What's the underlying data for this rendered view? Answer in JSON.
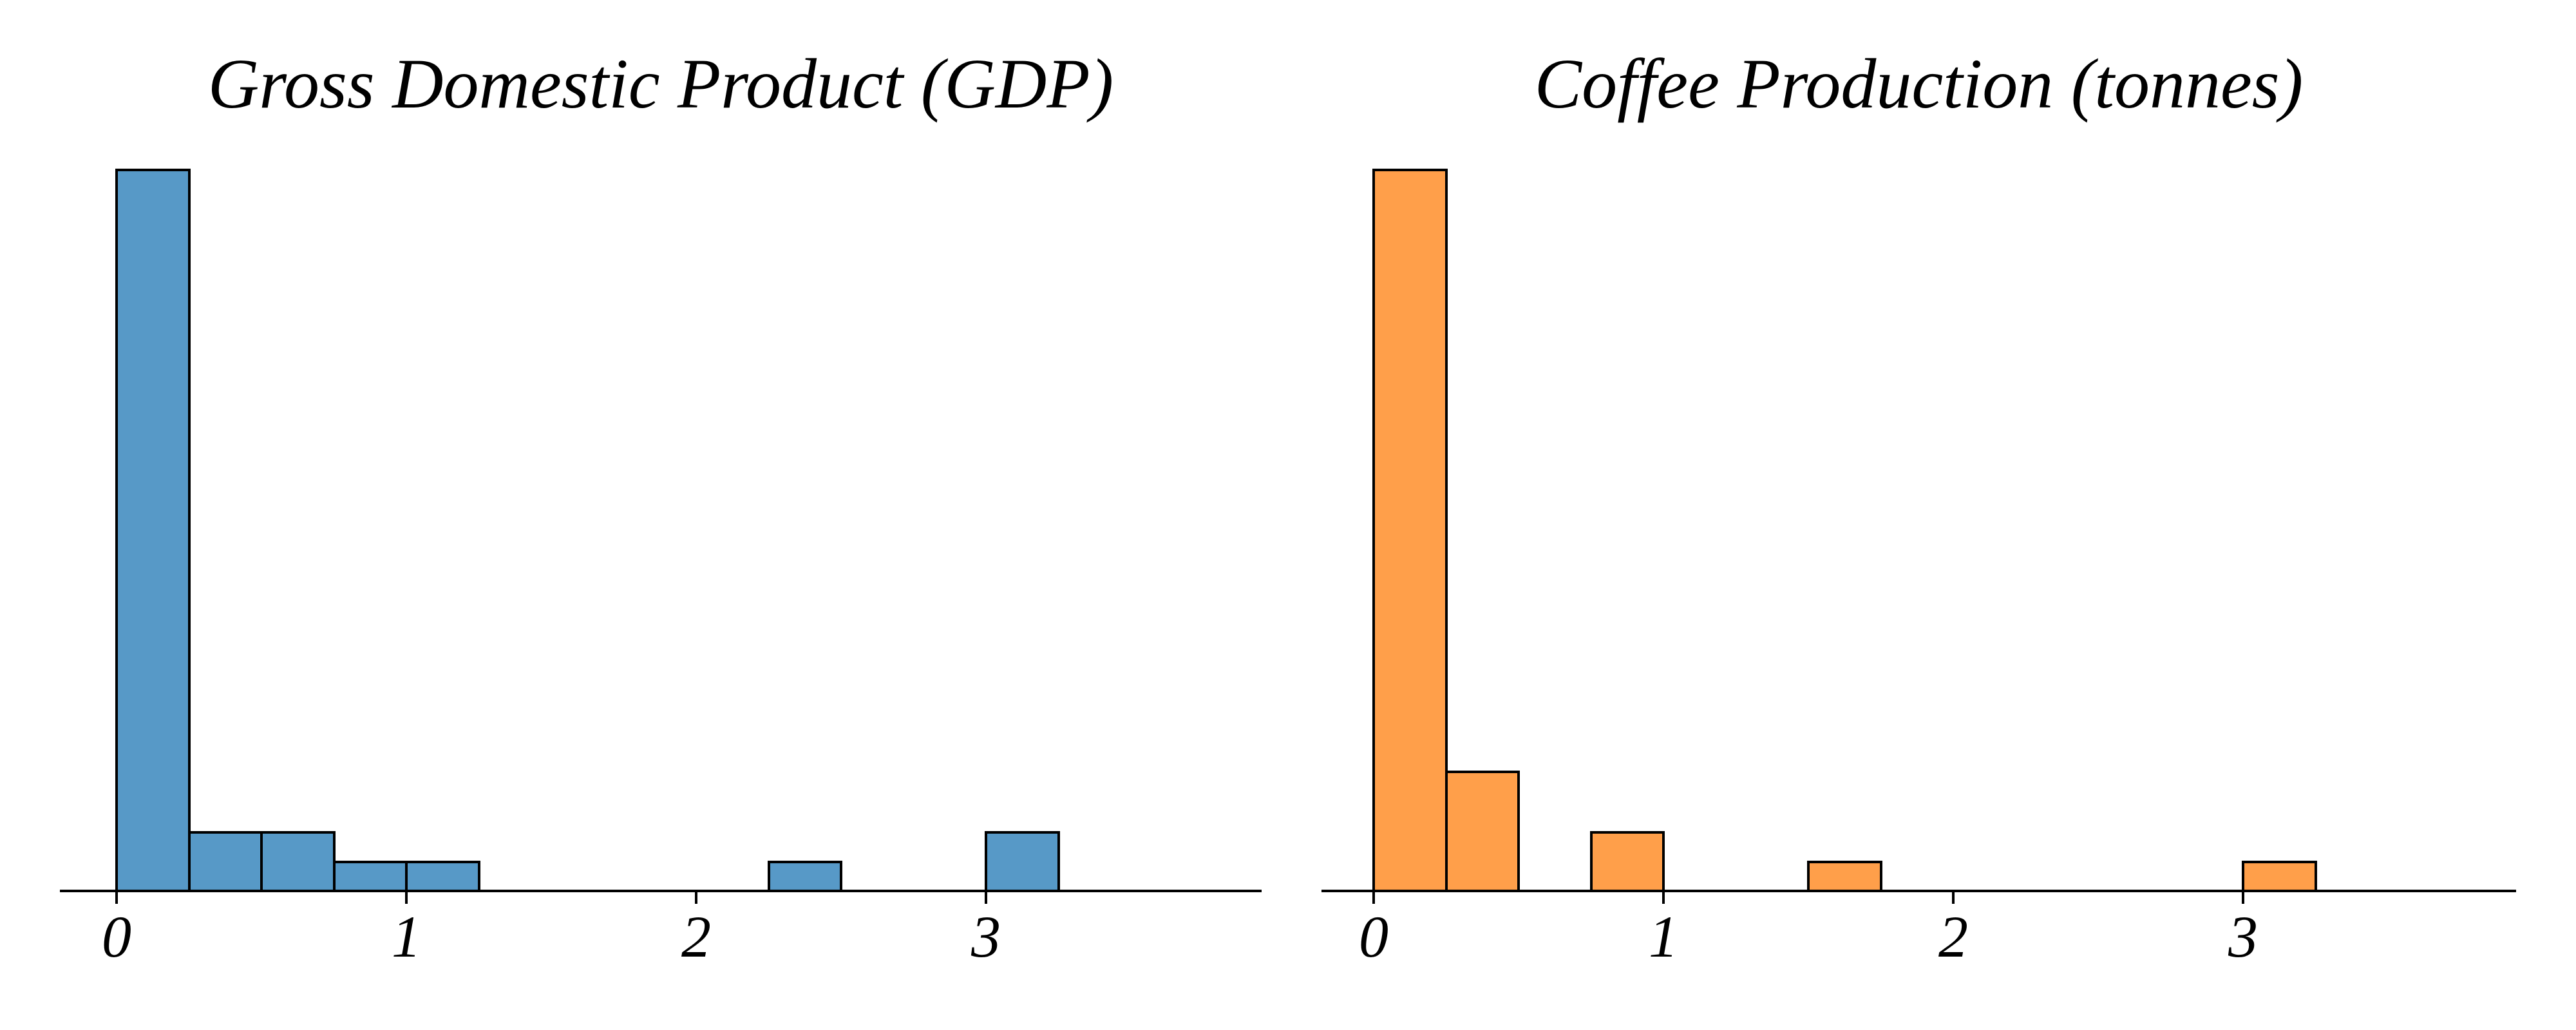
{
  "chart_data": [
    {
      "type": "bar",
      "subtype": "histogram",
      "title": "Gross Domestic Product (GDP)",
      "series_color_name": "blue",
      "bar_fill": "#5799C7",
      "bar_edge": "#000000",
      "bin_width": 0.25,
      "bins": [
        {
          "start": 0.0,
          "end": 0.25,
          "count": 24
        },
        {
          "start": 0.25,
          "end": 0.5,
          "count": 2
        },
        {
          "start": 0.5,
          "end": 0.75,
          "count": 2
        },
        {
          "start": 0.75,
          "end": 1.0,
          "count": 1
        },
        {
          "start": 1.0,
          "end": 1.25,
          "count": 1
        },
        {
          "start": 2.25,
          "end": 2.5,
          "count": 1
        },
        {
          "start": 3.0,
          "end": 3.25,
          "count": 2
        }
      ],
      "x_tick_values": [
        0,
        1,
        2,
        3
      ],
      "x_tick_labels": [
        "0",
        "1",
        "2",
        "3"
      ],
      "xlim": [
        -0.2,
        3.95
      ],
      "ylim": [
        0,
        25
      ],
      "grid": false,
      "y_axis_visible": false,
      "legend": "none"
    },
    {
      "type": "bar",
      "subtype": "histogram",
      "title": "Coffee Production (tonnes)",
      "series_color_name": "orange",
      "bar_fill": "#FF9F4A",
      "bar_edge": "#000000",
      "bin_width": 0.25,
      "bins": [
        {
          "start": 0.0,
          "end": 0.25,
          "count": 24
        },
        {
          "start": 0.25,
          "end": 0.5,
          "count": 4
        },
        {
          "start": 0.75,
          "end": 1.0,
          "count": 2
        },
        {
          "start": 1.5,
          "end": 1.75,
          "count": 1
        },
        {
          "start": 3.0,
          "end": 3.25,
          "count": 1
        }
      ],
      "x_tick_values": [
        0,
        1,
        2,
        3
      ],
      "x_tick_labels": [
        "0",
        "1",
        "2",
        "3"
      ],
      "xlim": [
        -0.18,
        3.94
      ],
      "ylim": [
        0,
        25
      ],
      "grid": false,
      "y_axis_visible": false,
      "legend": "none"
    }
  ]
}
